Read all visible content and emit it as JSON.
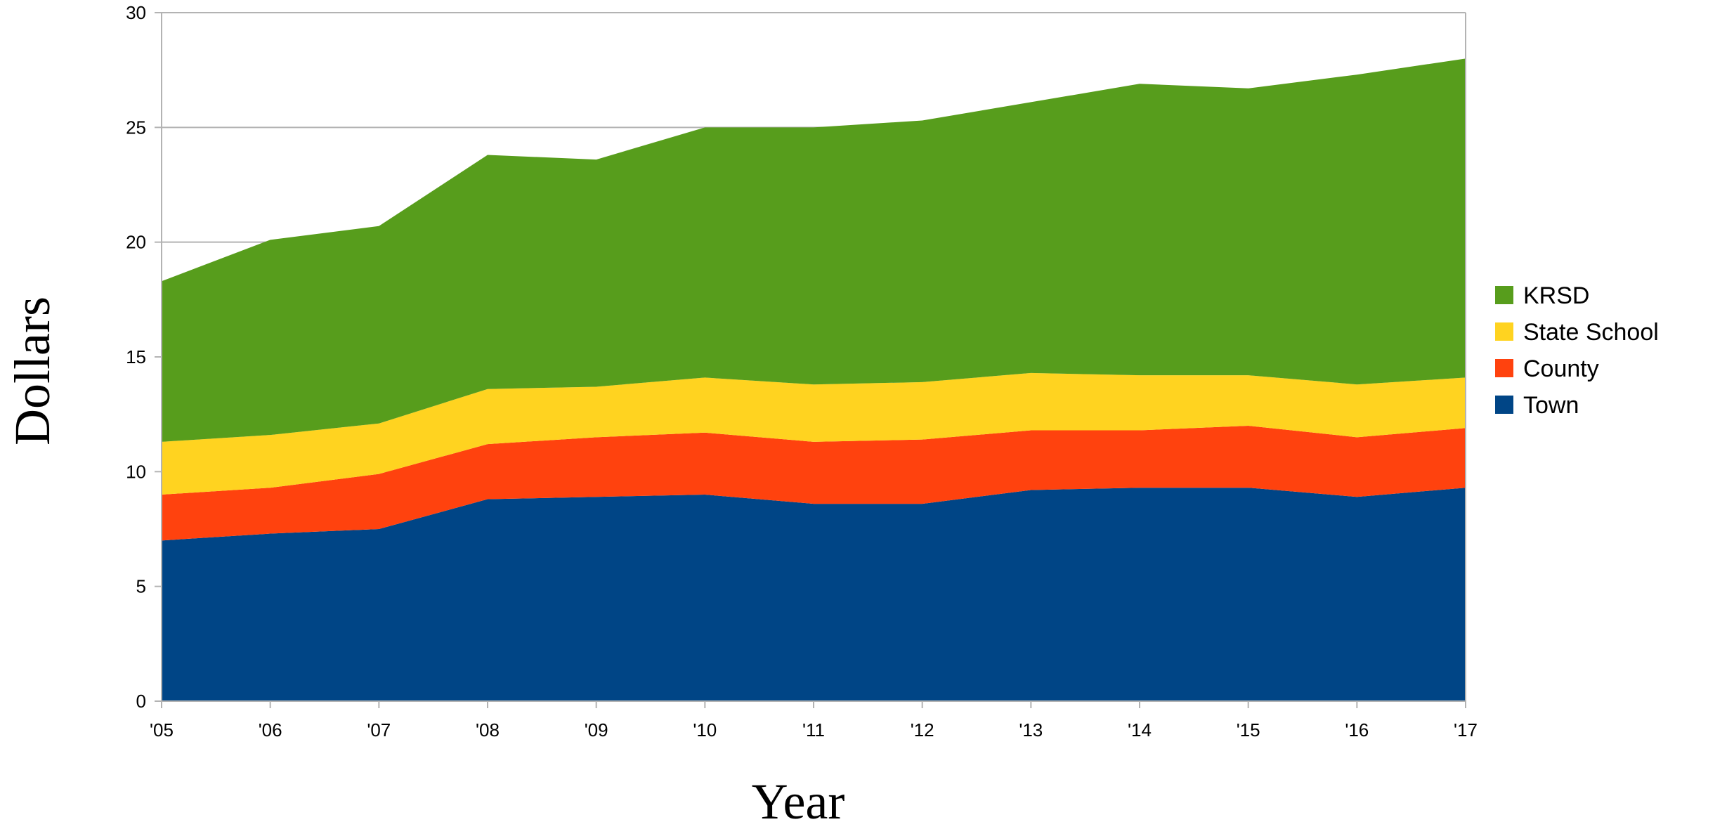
{
  "chart_data": {
    "type": "area",
    "stacked": true,
    "title": "",
    "xlabel": "Year",
    "ylabel": "Dollars",
    "ylim": [
      0,
      30
    ],
    "yticks": [
      0,
      5,
      10,
      15,
      20,
      25,
      30
    ],
    "grid": "horizontal",
    "legend_position": "right",
    "categories": [
      "'05",
      "'06",
      "'07",
      "'08",
      "'09",
      "'10",
      "'11",
      "'12",
      "'13",
      "'14",
      "'15",
      "'16",
      "'17"
    ],
    "series": [
      {
        "name": "Town",
        "color": "#004586",
        "values": [
          7.0,
          7.3,
          7.5,
          8.8,
          8.9,
          9.0,
          8.6,
          8.6,
          9.2,
          9.3,
          9.3,
          8.9,
          9.3
        ]
      },
      {
        "name": "County",
        "color": "#ff420e",
        "values": [
          2.0,
          2.0,
          2.4,
          2.4,
          2.6,
          2.7,
          2.7,
          2.8,
          2.6,
          2.5,
          2.7,
          2.6,
          2.6
        ]
      },
      {
        "name": "State School",
        "color": "#ffd320",
        "values": [
          2.3,
          2.3,
          2.2,
          2.4,
          2.2,
          2.4,
          2.5,
          2.5,
          2.5,
          2.4,
          2.2,
          2.3,
          2.2
        ]
      },
      {
        "name": "KRSD",
        "color": "#579d1c",
        "values": [
          7.0,
          8.5,
          8.6,
          10.2,
          9.9,
          10.9,
          11.2,
          11.4,
          11.8,
          12.7,
          12.5,
          13.5,
          13.9
        ]
      }
    ],
    "legend_order": [
      "KRSD",
      "State School",
      "County",
      "Town"
    ]
  }
}
